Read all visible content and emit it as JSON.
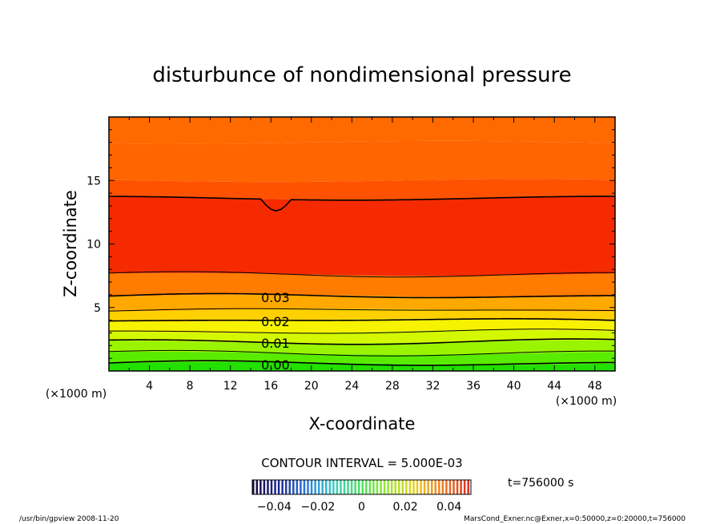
{
  "chart_data": {
    "type": "heatmap",
    "title": "disturbunce of nondimensional pressure",
    "xlabel": "X-coordinate",
    "ylabel": "Z-coordinate",
    "x_unit": "(×1000 m)",
    "y_unit": "(×1000 m)",
    "xlim": [
      0,
      50
    ],
    "ylim": [
      0,
      20
    ],
    "x_ticks": [
      "4",
      "8",
      "12",
      "16",
      "20",
      "24",
      "28",
      "32",
      "36",
      "40",
      "44",
      "48"
    ],
    "y_ticks": [
      "5",
      "10",
      "15"
    ],
    "contour_interval_label": "CONTOUR INTERVAL = 5.000E-03",
    "contour_labels": [
      {
        "text": "0.00",
        "z": 0.5
      },
      {
        "text": "0.01",
        "z": 2.2
      },
      {
        "text": "0.02",
        "z": 3.9
      },
      {
        "text": "0.03",
        "z": 5.8
      }
    ],
    "contour_lines": [
      {
        "level": 0.0,
        "z": 0.6
      },
      {
        "level": 0.005,
        "z": 1.4
      },
      {
        "level": 0.01,
        "z": 2.3
      },
      {
        "level": 0.015,
        "z": 3.1
      },
      {
        "level": 0.02,
        "z": 4.0
      },
      {
        "level": 0.025,
        "z": 4.8
      },
      {
        "level": 0.03,
        "z": 5.9
      },
      {
        "level": 0.035,
        "z": 7.6
      },
      {
        "level": 0.035,
        "z": 13.6
      }
    ],
    "color_bands": [
      {
        "z0": 0.0,
        "z1": 0.6,
        "color": "#22e000"
      },
      {
        "z0": 0.6,
        "z1": 1.4,
        "color": "#5aec00"
      },
      {
        "z0": 1.4,
        "z1": 2.3,
        "color": "#9af400"
      },
      {
        "z0": 2.3,
        "z1": 3.1,
        "color": "#d4f800"
      },
      {
        "z0": 3.1,
        "z1": 4.0,
        "color": "#f6f200"
      },
      {
        "z0": 4.0,
        "z1": 4.8,
        "color": "#ffd000"
      },
      {
        "z0": 4.8,
        "z1": 5.9,
        "color": "#ffa800"
      },
      {
        "z0": 5.9,
        "z1": 7.6,
        "color": "#ff7c00"
      },
      {
        "z0": 7.6,
        "z1": 13.6,
        "color": "#f52a00"
      },
      {
        "z0": 13.6,
        "z1": 15.0,
        "color": "#ff5200"
      },
      {
        "z0": 15.0,
        "z1": 18.0,
        "color": "#ff6500"
      },
      {
        "z0": 18.0,
        "z1": 20.0,
        "color": "#ff6a00"
      }
    ],
    "colorbar": {
      "ticks": [
        "−0.04",
        "−0.02",
        "0",
        "0.02",
        "0.04"
      ],
      "range": [
        -0.05,
        0.05
      ],
      "stops": [
        "#1a0a40",
        "#1e2a9a",
        "#2a7ae0",
        "#3ad0c0",
        "#4ee060",
        "#9ae830",
        "#e8d020",
        "#f08020",
        "#e03020"
      ]
    },
    "time_label": "t=756000 s"
  },
  "footer": {
    "left": "/usr/bin/gpview  2008-11-20",
    "right": "MarsCond_Exner.nc@Exner,x=0:50000,z=0:20000,t=756000"
  }
}
